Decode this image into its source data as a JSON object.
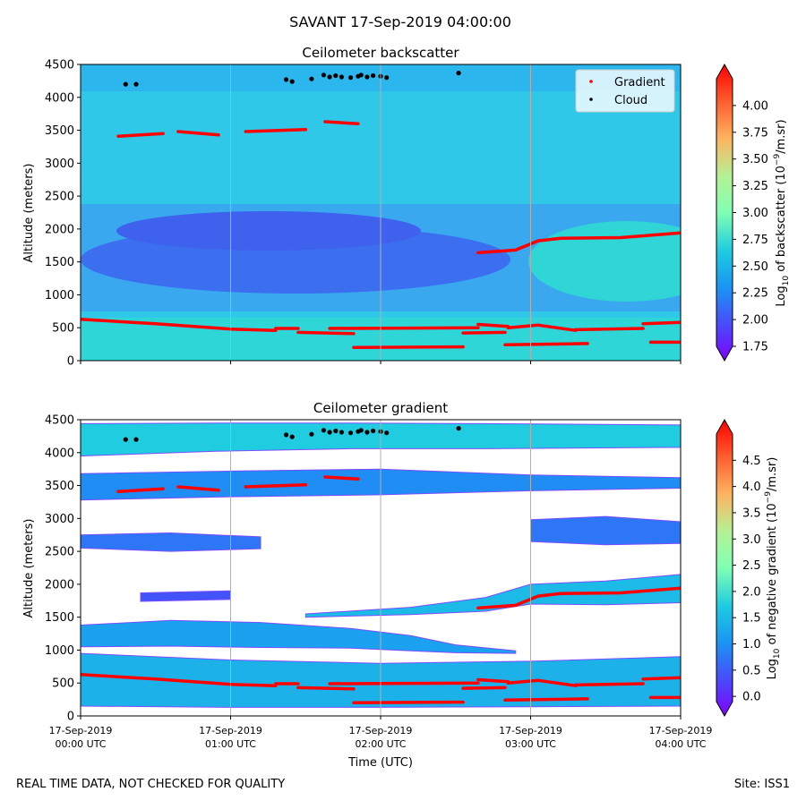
{
  "figure": {
    "suptitle": "SAVANT 17-Sep-2019 04:00:00",
    "footer_left": "REAL TIME DATA, NOT CHECKED FOR QUALITY",
    "footer_right": "Site: ISS1"
  },
  "chart_data": [
    {
      "type": "heatmap",
      "title": "Ceilometer backscatter",
      "xlabel": "",
      "ylabel": "Altitude (meters)",
      "xlim_hours_utc": [
        0,
        4
      ],
      "ylim": [
        0,
        4500
      ],
      "yticks": [
        "0",
        "500",
        "1000",
        "1500",
        "2000",
        "2500",
        "3000",
        "3500",
        "4000",
        "4500"
      ],
      "grid": "vertical lines at hourly ticks",
      "legend": {
        "placement": "top-right",
        "entries": [
          {
            "label": "Gradient",
            "color": "#ff0000"
          },
          {
            "label": "Cloud",
            "color": "#000000"
          }
        ]
      },
      "colorbar": {
        "label_prefix": "Log",
        "label_sub": "10",
        "label_mid": " of backscatter (10",
        "label_sup": "−9",
        "label_suffix": "/m.sr)",
        "range": [
          1.75,
          4.25
        ],
        "ticks": [
          "1.75",
          "2.00",
          "2.25",
          "2.50",
          "2.75",
          "3.00",
          "3.25",
          "3.50",
          "3.75",
          "4.00"
        ],
        "colormap": "rainbow",
        "extend": "both"
      },
      "gradient_layers": [
        {
          "t": [
            0.0,
            0.5,
            1.0,
            1.3
          ],
          "alt": [
            630,
            560,
            480,
            460
          ]
        },
        {
          "t": [
            1.3,
            1.45
          ],
          "alt": [
            490,
            490
          ]
        },
        {
          "t": [
            1.45,
            1.82
          ],
          "alt": [
            430,
            410
          ]
        },
        {
          "t": [
            1.66,
            2.65
          ],
          "alt": [
            490,
            500
          ]
        },
        {
          "t": [
            2.65,
            2.85
          ],
          "alt": [
            550,
            520
          ]
        },
        {
          "t": [
            2.85,
            3.05
          ],
          "alt": [
            500,
            540
          ]
        },
        {
          "t": [
            3.05,
            3.3
          ],
          "alt": [
            540,
            460
          ]
        },
        {
          "t": [
            3.3,
            3.75
          ],
          "alt": [
            470,
            490
          ]
        },
        {
          "t": [
            3.75,
            4.0
          ],
          "alt": [
            560,
            580
          ]
        },
        {
          "t": [
            2.55,
            2.83
          ],
          "alt": [
            420,
            430
          ]
        },
        {
          "t": [
            1.82,
            2.55
          ],
          "alt": [
            200,
            210
          ]
        },
        {
          "t": [
            2.83,
            3.38
          ],
          "alt": [
            240,
            260
          ]
        },
        {
          "t": [
            3.8,
            4.0
          ],
          "alt": [
            280,
            280
          ]
        },
        {
          "t": [
            2.65,
            2.9,
            3.05,
            3.2,
            3.6,
            4.0
          ],
          "alt": [
            1640,
            1680,
            1820,
            1860,
            1870,
            1940
          ]
        },
        {
          "t": [
            0.25,
            0.55
          ],
          "alt": [
            3410,
            3450
          ]
        },
        {
          "t": [
            0.65,
            0.92
          ],
          "alt": [
            3480,
            3430
          ]
        },
        {
          "t": [
            1.1,
            1.5
          ],
          "alt": [
            3480,
            3510
          ]
        },
        {
          "t": [
            1.63,
            1.85
          ],
          "alt": [
            3630,
            3600
          ]
        }
      ],
      "cloud_points": {
        "t": [
          0.3,
          0.37,
          1.37,
          1.41,
          1.54,
          1.62,
          1.66,
          1.7,
          1.74,
          1.8,
          1.85,
          1.87,
          1.91,
          1.95,
          2.0,
          2.04,
          2.52
        ],
        "alt": [
          4200,
          4200,
          4270,
          4240,
          4280,
          4340,
          4310,
          4330,
          4310,
          4300,
          4320,
          4340,
          4310,
          4330,
          4320,
          4300,
          4370
        ]
      }
    },
    {
      "type": "heatmap",
      "title": "Ceilometer gradient",
      "xlabel": "Time (UTC)",
      "ylabel": "Altitude (meters)",
      "xlim_hours_utc": [
        0,
        4
      ],
      "ylim": [
        0,
        4500
      ],
      "xtick_dates": [
        "17-Sep-2019",
        "17-Sep-2019",
        "17-Sep-2019",
        "17-Sep-2019",
        "17-Sep-2019"
      ],
      "xtick_times": [
        "00:00 UTC",
        "01:00 UTC",
        "02:00 UTC",
        "03:00 UTC",
        "04:00 UTC"
      ],
      "yticks": [
        "0",
        "500",
        "1000",
        "1500",
        "2000",
        "2500",
        "3000",
        "3500",
        "4000",
        "4500"
      ],
      "grid": "vertical lines at hourly ticks",
      "colorbar": {
        "label_prefix": "Log",
        "label_sub": "10",
        "label_mid": " of negative gradient (10",
        "label_sup": "−9",
        "label_suffix": "/m.sr)",
        "range": [
          -0.1,
          5.0
        ],
        "ticks": [
          "0.0",
          "0.5",
          "1.0",
          "1.5",
          "2.0",
          "2.5",
          "3.0",
          "3.5",
          "4.0",
          "4.5"
        ],
        "colormap": "rainbow",
        "extend": "both"
      },
      "bands": [
        {
          "t": [
            0.0,
            1.0,
            2.0,
            3.0,
            4.0
          ],
          "top": [
            950,
            850,
            800,
            830,
            900
          ],
          "bottom": [
            150,
            130,
            130,
            140,
            150
          ],
          "level": 1.5
        },
        {
          "t": [
            0.0,
            0.6,
            1.2,
            1.8,
            2.2,
            2.5,
            2.9
          ],
          "top": [
            1380,
            1450,
            1420,
            1330,
            1220,
            1080,
            990
          ],
          "bottom": [
            1050,
            1060,
            1040,
            1030,
            990,
            960,
            950
          ],
          "level": 1.3
        },
        {
          "t": [
            1.5,
            2.2,
            2.7,
            3.0,
            3.5,
            4.0
          ],
          "top": [
            1550,
            1650,
            1800,
            2000,
            2050,
            2150
          ],
          "bottom": [
            1500,
            1540,
            1590,
            1700,
            1690,
            1720
          ],
          "level": 1.6
        },
        {
          "t": [
            0.0,
            1.0,
            2.0,
            3.0,
            4.0
          ],
          "top": [
            3680,
            3720,
            3750,
            3660,
            3620
          ],
          "bottom": [
            3280,
            3330,
            3360,
            3420,
            3460
          ],
          "level": 1.1
        },
        {
          "t": [
            0.0,
            0.9,
            1.8,
            2.7,
            4.0
          ],
          "top": [
            4440,
            4450,
            4450,
            4440,
            4420
          ],
          "bottom": [
            3950,
            4020,
            4060,
            4060,
            4080
          ],
          "level": 1.8
        },
        {
          "t": [
            0.0,
            0.6,
            1.2
          ],
          "top": [
            2750,
            2780,
            2720
          ],
          "bottom": [
            2550,
            2500,
            2540
          ],
          "level": 0.9
        },
        {
          "t": [
            3.0,
            3.5,
            4.0
          ],
          "top": [
            2980,
            3030,
            2950
          ],
          "bottom": [
            2650,
            2600,
            2620
          ],
          "level": 0.9
        },
        {
          "t": [
            0.4,
            1.0
          ],
          "top": [
            1870,
            1900
          ],
          "bottom": [
            1740,
            1770
          ],
          "level": 0.6
        }
      ],
      "gradient_layers": "same as backscatter panel",
      "cloud_points": "same as backscatter panel"
    }
  ]
}
